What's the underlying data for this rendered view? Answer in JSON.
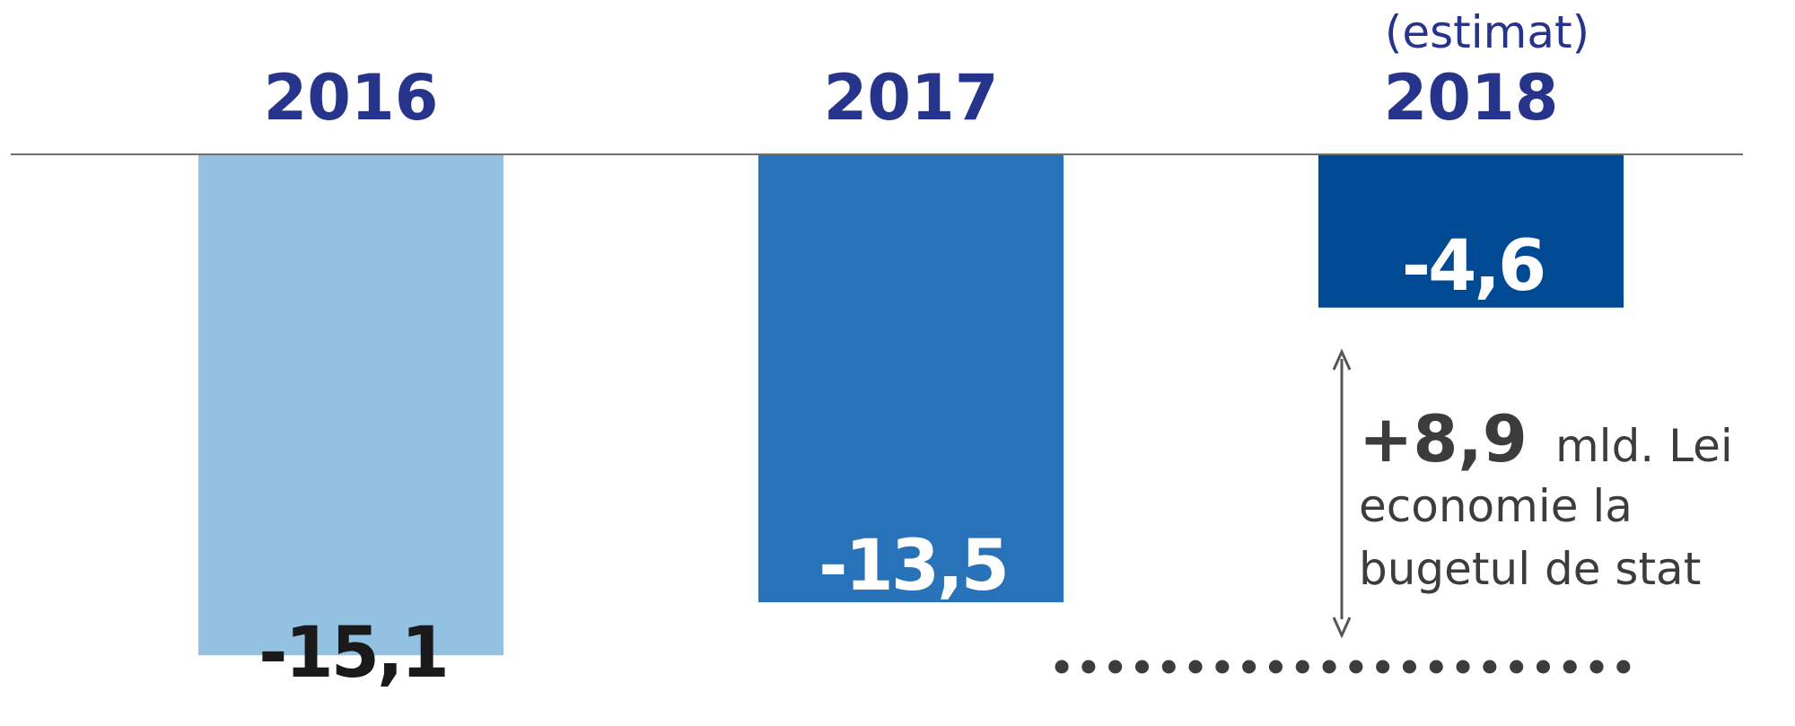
{
  "colors": {
    "header_text": "#27348b",
    "axis_line": "#707070",
    "annotation_text": "#3c3c3c",
    "arrow": "#555555",
    "dotted_line": "#3c3c3c"
  },
  "chart_data": {
    "type": "bar",
    "categories": [
      "2016",
      "2017",
      "2018"
    ],
    "category_notes": [
      "",
      "",
      "(estimat)"
    ],
    "values": [
      -15.1,
      -13.5,
      -4.6
    ],
    "value_labels": [
      "-15,1",
      "-13,5",
      "-4,6"
    ],
    "bar_colors": [
      "#93c1e2",
      "#2872b9",
      "#004a93"
    ],
    "value_label_colors": [
      "#1a1a1a",
      "#ffffff",
      "#ffffff"
    ],
    "grid": false,
    "legend": "none",
    "annotation": {
      "value": "+8,9",
      "unit": "mld. Lei",
      "lines": [
        "economie la",
        "bugetul de stat"
      ]
    }
  }
}
